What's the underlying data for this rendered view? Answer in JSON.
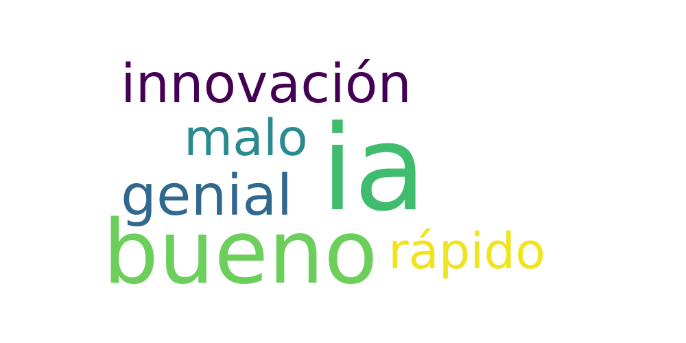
{
  "word_cloud": {
    "words": [
      {
        "text": "innovación",
        "color": "#440154"
      },
      {
        "text": "malo",
        "color": "#2a8a8d"
      },
      {
        "text": "ia",
        "color": "#3fbc6e"
      },
      {
        "text": "genial",
        "color": "#31688e"
      },
      {
        "text": "bueno",
        "color": "#6ccf5b"
      },
      {
        "text": "rápido",
        "color": "#f0e41f"
      }
    ]
  }
}
